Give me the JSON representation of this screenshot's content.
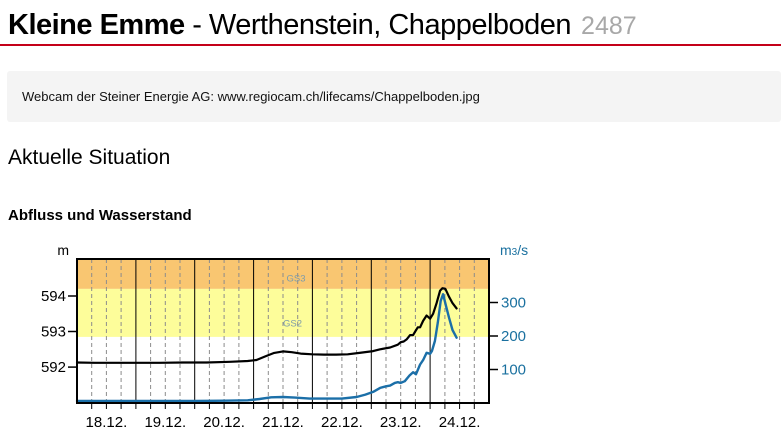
{
  "header": {
    "station_river": "Kleine Emme",
    "station_separator": " - ",
    "station_place": "Werthenstein, Chappelboden",
    "station_number": "2487",
    "accent_color": "#c40019"
  },
  "webcam_note": "Webcam der Steiner Energie AG: www.regiocam.ch/lifecams/Chappelboden.jpg",
  "sections": {
    "current_situation_heading": "Aktuelle Situation",
    "chart_heading": "Abfluss und Wasserstand"
  },
  "chart_data": {
    "type": "line",
    "title": "Abfluss und Wasserstand",
    "x": {
      "tick_labels": [
        "18.12.",
        "19.12.",
        "20.12.",
        "21.12.",
        "22.12.",
        "23.12.",
        "24.12."
      ],
      "days": 7,
      "minor_ticks_per_day": 4
    },
    "left_axis": {
      "label": "m",
      "ticks": [
        592,
        593,
        594
      ],
      "min": 590.99,
      "max": 595.04,
      "color": "#000000"
    },
    "right_axis": {
      "label_main": "m",
      "label_sub": "3",
      "label_rest": "/s",
      "ticks": [
        100,
        200,
        300
      ],
      "min": 0,
      "max": 430,
      "color": "#1a709f"
    },
    "danger_bands": [
      {
        "label": "GS3",
        "from_level": 594.2,
        "to_level": 595.04,
        "color": "#f9c671",
        "label_pos": {
          "day": 3.56,
          "level": 594.41
        }
      },
      {
        "label": "GS2",
        "from_level": 592.85,
        "to_level": 594.2,
        "color": "#fdfd9a",
        "label_pos": {
          "day": 3.5,
          "level": 593.14
        }
      }
    ],
    "band_label_color": "#7d9cab",
    "grid": {
      "minor_color": "#8c8c8c",
      "day_line_color": "#000000"
    },
    "series": [
      {
        "name": "Wasserstand",
        "axis": "left",
        "color": "#000000",
        "width": 2.2,
        "points": [
          [
            0,
            592.13
          ],
          [
            0.3,
            592.12
          ],
          [
            0.6,
            592.12
          ],
          [
            1,
            592.12
          ],
          [
            1.4,
            592.12
          ],
          [
            1.8,
            592.13
          ],
          [
            2.2,
            592.13
          ],
          [
            2.6,
            592.15
          ],
          [
            2.9,
            592.17
          ],
          [
            3.05,
            592.2
          ],
          [
            3.2,
            592.3
          ],
          [
            3.35,
            592.4
          ],
          [
            3.5,
            592.44
          ],
          [
            3.65,
            592.42
          ],
          [
            3.8,
            592.38
          ],
          [
            4,
            592.36
          ],
          [
            4.2,
            592.35
          ],
          [
            4.4,
            592.35
          ],
          [
            4.6,
            592.36
          ],
          [
            4.8,
            592.4
          ],
          [
            5.03,
            592.45
          ],
          [
            5.15,
            592.5
          ],
          [
            5.32,
            592.55
          ],
          [
            5.45,
            592.63
          ],
          [
            5.5,
            592.7
          ],
          [
            5.55,
            592.72
          ],
          [
            5.6,
            592.78
          ],
          [
            5.66,
            592.9
          ],
          [
            5.71,
            592.9
          ],
          [
            5.74,
            592.98
          ],
          [
            5.79,
            593.12
          ],
          [
            5.83,
            593.12
          ],
          [
            5.88,
            593.3
          ],
          [
            5.94,
            593.45
          ],
          [
            6.0,
            593.36
          ],
          [
            6.05,
            593.5
          ],
          [
            6.11,
            593.8
          ],
          [
            6.17,
            594.15
          ],
          [
            6.21,
            594.22
          ],
          [
            6.26,
            594.2
          ],
          [
            6.32,
            593.98
          ],
          [
            6.38,
            593.8
          ],
          [
            6.45,
            593.65
          ]
        ]
      },
      {
        "name": "Abfluss",
        "axis": "right",
        "color": "#1b6fa8",
        "width": 2.4,
        "points": [
          [
            0,
            6
          ],
          [
            0.5,
            6
          ],
          [
            1,
            6
          ],
          [
            1.5,
            6
          ],
          [
            2,
            6
          ],
          [
            2.5,
            7
          ],
          [
            2.9,
            8
          ],
          [
            3.1,
            12
          ],
          [
            3.3,
            17
          ],
          [
            3.5,
            18
          ],
          [
            3.7,
            16
          ],
          [
            3.95,
            13
          ],
          [
            4.2,
            13
          ],
          [
            4.5,
            13
          ],
          [
            4.75,
            18
          ],
          [
            4.9,
            25
          ],
          [
            5.03,
            33
          ],
          [
            5.15,
            45
          ],
          [
            5.25,
            50
          ],
          [
            5.32,
            52
          ],
          [
            5.4,
            60
          ],
          [
            5.45,
            62
          ],
          [
            5.5,
            60
          ],
          [
            5.57,
            65
          ],
          [
            5.65,
            82
          ],
          [
            5.71,
            92
          ],
          [
            5.76,
            86
          ],
          [
            5.83,
            115
          ],
          [
            5.88,
            128
          ],
          [
            5.94,
            150
          ],
          [
            6.0,
            147
          ],
          [
            6.03,
            155
          ],
          [
            6.08,
            185
          ],
          [
            6.13,
            240
          ],
          [
            6.18,
            305
          ],
          [
            6.22,
            325
          ],
          [
            6.27,
            290
          ],
          [
            6.32,
            255
          ],
          [
            6.38,
            218
          ],
          [
            6.45,
            195
          ]
        ]
      }
    ]
  }
}
